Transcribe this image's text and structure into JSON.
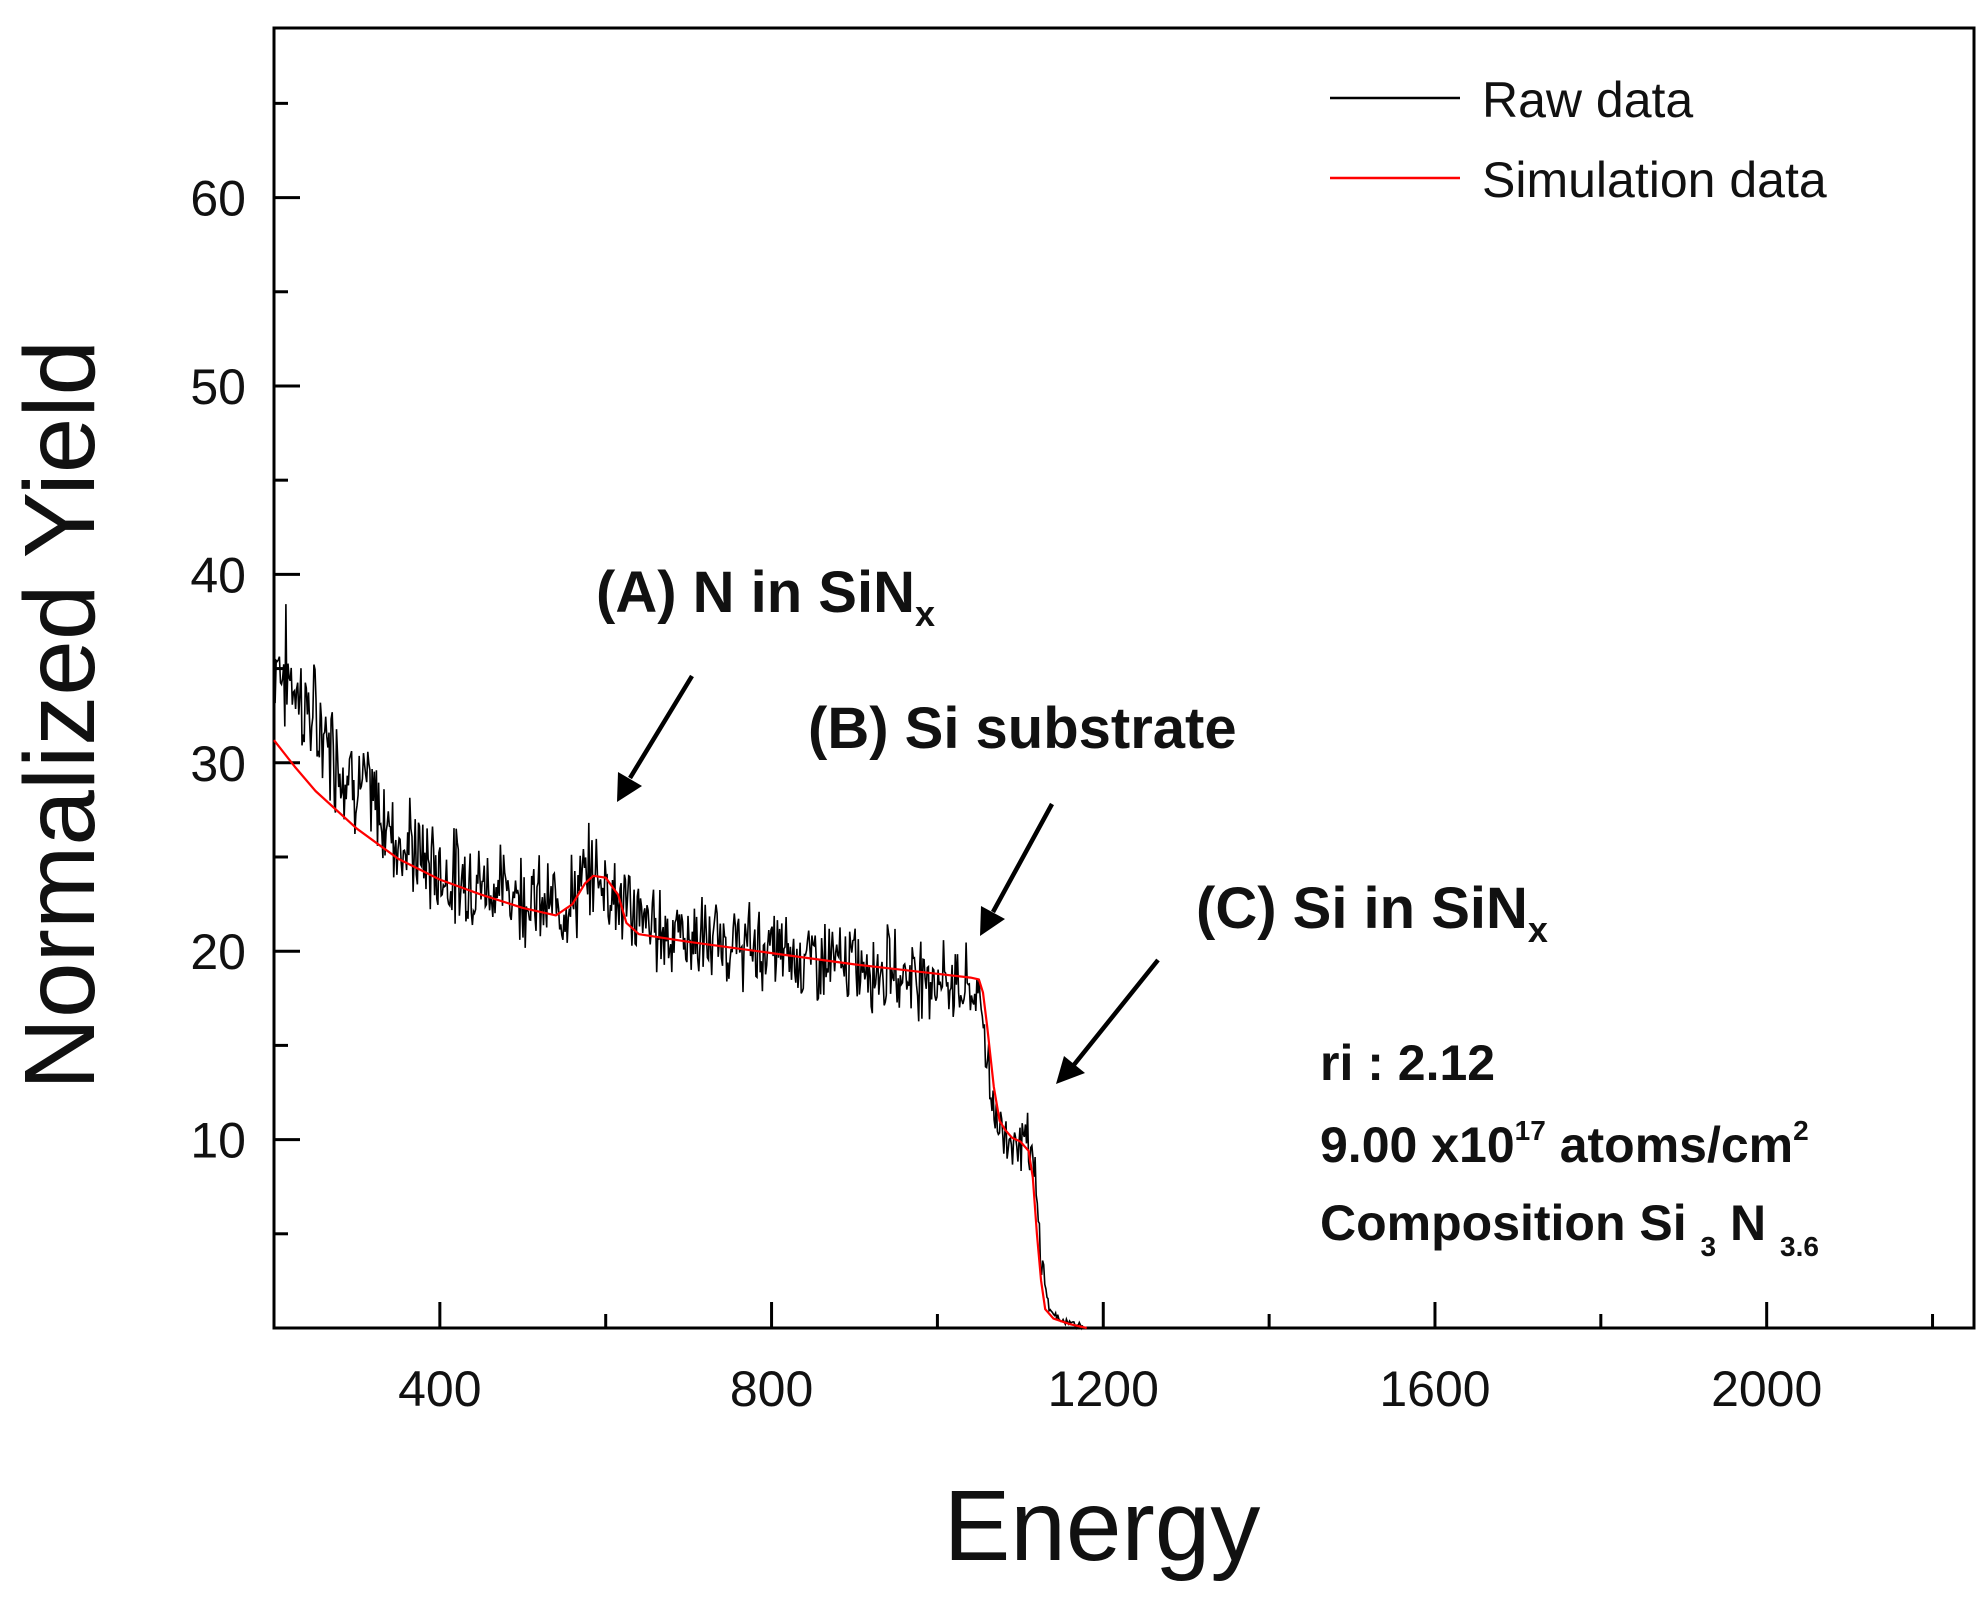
{
  "chart_data": {
    "type": "line",
    "title": "",
    "xlabel": "Energy",
    "ylabel": "Normalized Yield",
    "xlim": [
      200,
      2250
    ],
    "ylim": [
      0,
      69
    ],
    "x_ticks": [
      "400",
      "800",
      "1200",
      "1600",
      "2000"
    ],
    "y_ticks": [
      "10",
      "20",
      "30",
      "40",
      "50",
      "60"
    ],
    "legend_position": "top-right",
    "series": [
      {
        "name": "Raw data",
        "color": "#000000",
        "x": [
          200,
          220,
          250,
          300,
          350,
          400,
          450,
          500,
          530,
          560,
          585,
          600,
          620,
          650,
          700,
          750,
          800,
          850,
          900,
          950,
          1000,
          1040,
          1055,
          1062,
          1070,
          1078,
          1085,
          1095,
          1105,
          1110,
          1117,
          1122,
          1128,
          1135,
          1145,
          1160,
          1175
        ],
        "values": [
          35.8,
          34.5,
          32.0,
          29.0,
          26.0,
          24.2,
          23.6,
          23.1,
          22.3,
          22.8,
          24.2,
          23.8,
          22.5,
          21.5,
          20.7,
          20.3,
          20.1,
          19.6,
          19.3,
          19.0,
          18.6,
          18.0,
          17.0,
          13.5,
          11.0,
          10.5,
          10.2,
          10.1,
          10.0,
          9.6,
          8.2,
          5.2,
          2.8,
          1.0,
          0.5,
          0.3,
          0.1
        ]
      },
      {
        "name": "Simulation data",
        "color": "#ff0000",
        "x": [
          200,
          225,
          250,
          300,
          350,
          400,
          450,
          500,
          540,
          560,
          575,
          585,
          600,
          615,
          625,
          640,
          700,
          800,
          900,
          1000,
          1040,
          1050,
          1055,
          1060,
          1068,
          1075,
          1082,
          1090,
          1100,
          1110,
          1115,
          1120,
          1125,
          1130,
          1140,
          1160,
          1180
        ],
        "values": [
          31.2,
          29.8,
          28.5,
          26.5,
          24.9,
          23.8,
          23.0,
          22.3,
          21.9,
          22.5,
          23.6,
          24.0,
          23.9,
          23.0,
          21.5,
          20.9,
          20.5,
          19.9,
          19.3,
          18.8,
          18.6,
          18.5,
          17.8,
          16.0,
          12.8,
          11.0,
          10.5,
          10.1,
          9.9,
          9.4,
          8.0,
          5.0,
          2.5,
          1.0,
          0.5,
          0.2,
          0.0
        ]
      }
    ],
    "annotations": [
      {
        "id": "A",
        "text": "(A)  N in SiN",
        "sub": "x"
      },
      {
        "id": "B",
        "text": "(B)  Si substrate",
        "sub": ""
      },
      {
        "id": "C",
        "text": "(C)  Si in SiN",
        "sub": "x"
      }
    ],
    "info_box": {
      "line1": "ri : 2.12",
      "line2_main": "9.00 x10",
      "line2_exp": "17",
      "line2_unit": " atoms/cm",
      "line2_unit_exp": "2",
      "line3_main": "Composition Si ",
      "line3_si_sub": "3",
      "line3_n": " N ",
      "line3_n_sub": "3.6"
    }
  }
}
